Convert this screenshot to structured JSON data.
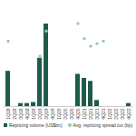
{
  "chart_data": {
    "type": "bar",
    "categories": [
      "1Q18",
      "2Q18",
      "3Q18",
      "4Q18",
      "1Q19",
      "2Q19",
      "3Q19",
      "4Q19",
      "1Q20",
      "2Q20",
      "3Q20",
      "4Q20",
      "1Q21",
      "2Q21",
      "3Q21",
      "4Q21",
      "1Q22",
      "2Q22",
      "3Q22",
      "4Q22"
    ],
    "series": [
      {
        "name": "Repricing volume (US$bn)",
        "type": "bar",
        "color": "#1e5b4b",
        "values": [
          35,
          0,
          3,
          3,
          4,
          48,
          82,
          0,
          0,
          0,
          0,
          32,
          28,
          25,
          6,
          0,
          0,
          0,
          0,
          3
        ]
      },
      {
        "name": "Avg. repricing spread cut (bp)",
        "type": "scatter",
        "marker": "circle",
        "color": "#94cbb0",
        "axis": "y2",
        "values": [
          26,
          null,
          null,
          null,
          null,
          20,
          30,
          null,
          null,
          null,
          null,
          33,
          27,
          24,
          25,
          26,
          null,
          null,
          null,
          null
        ]
      }
    ],
    "ylim": [
      0,
      100
    ],
    "y2lim": [
      0,
      40
    ],
    "tick_labels": "x",
    "legend": "bottom"
  }
}
